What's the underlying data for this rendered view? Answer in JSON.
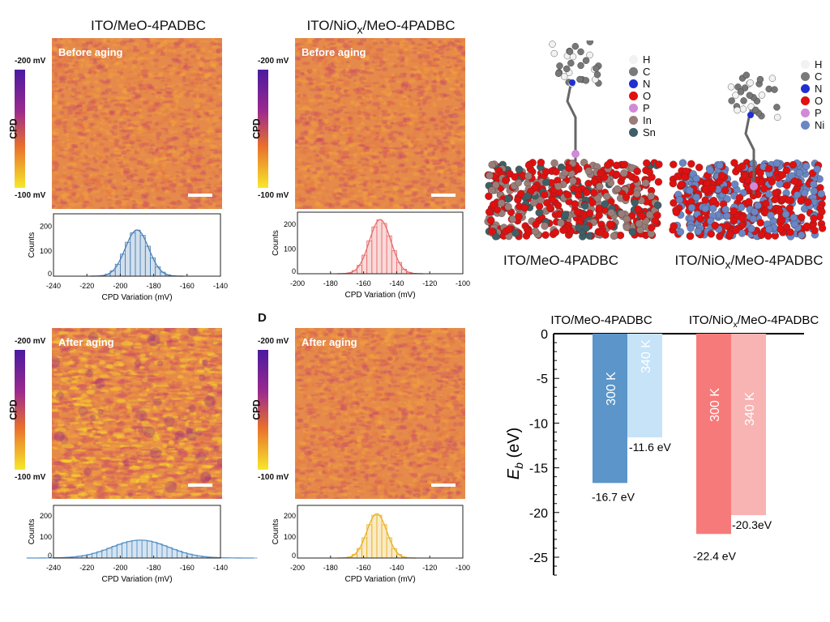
{
  "titles": {
    "left": "ITO/MeO-4PADBC",
    "mid_prefix": "ITO/NiO",
    "mid_sub": "x",
    "mid_suffix": "/MeO-4PADBC"
  },
  "panel_label_d": "D",
  "colorbar": {
    "label": "CPD",
    "top": "-200 mV",
    "bottom": "-100 mV"
  },
  "maps": [
    {
      "overlay": "Before aging"
    },
    {
      "overlay": "Before aging"
    },
    {
      "overlay": "After aging"
    },
    {
      "overlay": "After aging"
    }
  ],
  "chart_data": [
    {
      "type": "bar",
      "subtype": "histogram",
      "xlabel": "CPD Variation (mV)",
      "ylabel": "Counts",
      "xlim": [
        -240,
        -140
      ],
      "ylim": [
        0,
        250
      ],
      "xticks": [
        "-240",
        "-220",
        "-200",
        "-180",
        "-160",
        "-140"
      ],
      "yticks": [
        "0",
        "100",
        "200"
      ],
      "mean": -190,
      "sd": 7,
      "peak": 185,
      "bin_width": 3,
      "color": "#4a7fb5"
    },
    {
      "type": "bar",
      "subtype": "histogram",
      "xlabel": "CPD Variation (mV)",
      "ylabel": "Counts",
      "xlim": [
        -200,
        -100
      ],
      "ylim": [
        0,
        250
      ],
      "xticks": [
        "-200",
        "-180",
        "-160",
        "-140",
        "-120",
        "-100"
      ],
      "yticks": [
        "0",
        "100",
        "200"
      ],
      "mean": -150,
      "sd": 6.5,
      "peak": 220,
      "bin_width": 3,
      "color": "#e86a6a"
    },
    {
      "type": "bar",
      "subtype": "histogram",
      "xlabel": "CPD Variation (mV)",
      "ylabel": "Counts",
      "xlim": [
        -240,
        -140
      ],
      "ylim": [
        0,
        250
      ],
      "xticks": [
        "-240",
        "-220",
        "-200",
        "-180",
        "-160",
        "-140"
      ],
      "yticks": [
        "0",
        "100",
        "200"
      ],
      "mean": -188,
      "sd": 17,
      "peak": 85,
      "bin_width": 3,
      "color": "#5b95c9"
    },
    {
      "type": "bar",
      "subtype": "histogram",
      "xlabel": "CPD Variation (mV)",
      "ylabel": "Counts",
      "xlim": [
        -200,
        -100
      ],
      "ylim": [
        0,
        250
      ],
      "xticks": [
        "-200",
        "-180",
        "-160",
        "-140",
        "-120",
        "-100"
      ],
      "yticks": [
        "0",
        "100",
        "200"
      ],
      "mean": -152,
      "sd": 6,
      "peak": 210,
      "bin_width": 3,
      "color": "#e8b020"
    },
    {
      "type": "bar",
      "ylabel_main": "E",
      "ylabel_sub": "b",
      "ylabel_unit": " (eV)",
      "ylim": [
        -28,
        0
      ],
      "yticks": [
        "0",
        "-5",
        "-10",
        "-15",
        "-20",
        "-25"
      ],
      "groups": [
        "ITO/MeO-4PADBC",
        "ITO/NiOx/MeO-4PADBC"
      ],
      "group_labels": [
        {
          "prefix": "ITO/MeO-4PADBC",
          "sub": "",
          "suffix": ""
        },
        {
          "prefix": "ITO/NiO",
          "sub": "x",
          "suffix": "/MeO-4PADBC"
        }
      ],
      "bars": [
        {
          "group": 0,
          "label": "300 K",
          "value": -16.7,
          "data_label": "-16.7 eV",
          "color": "#5b95c9"
        },
        {
          "group": 0,
          "label": "340 K",
          "value": -11.6,
          "data_label": "-11.6 eV",
          "color": "#c6e3f8"
        },
        {
          "group": 1,
          "label": "300 K",
          "value": -22.4,
          "data_label": "-22.4 eV",
          "color": "#f77a7a"
        },
        {
          "group": 1,
          "label": "340 K",
          "value": -20.3,
          "data_label": "-20.3eV",
          "color": "#f8b3b3"
        }
      ]
    }
  ],
  "structures": {
    "legend1": [
      {
        "el": "H",
        "color": "#f2f2f2"
      },
      {
        "el": "C",
        "color": "#7a7a7a"
      },
      {
        "el": "N",
        "color": "#1f2fd0"
      },
      {
        "el": "O",
        "color": "#e01010"
      },
      {
        "el": "P",
        "color": "#d08ad8"
      },
      {
        "el": "In",
        "color": "#9a7d78"
      },
      {
        "el": "Sn",
        "color": "#3f5f66"
      }
    ],
    "legend2": [
      {
        "el": "H",
        "color": "#f2f2f2"
      },
      {
        "el": "C",
        "color": "#7a7a7a"
      },
      {
        "el": "N",
        "color": "#1f2fd0"
      },
      {
        "el": "O",
        "color": "#e01010"
      },
      {
        "el": "P",
        "color": "#d08ad8"
      },
      {
        "el": "Ni",
        "color": "#6a86c4"
      }
    ],
    "caption1": "ITO/MeO-4PADBC",
    "caption2_prefix": "ITO/NiO",
    "caption2_sub": "x",
    "caption2_suffix": "/MeO-4PADBC"
  }
}
